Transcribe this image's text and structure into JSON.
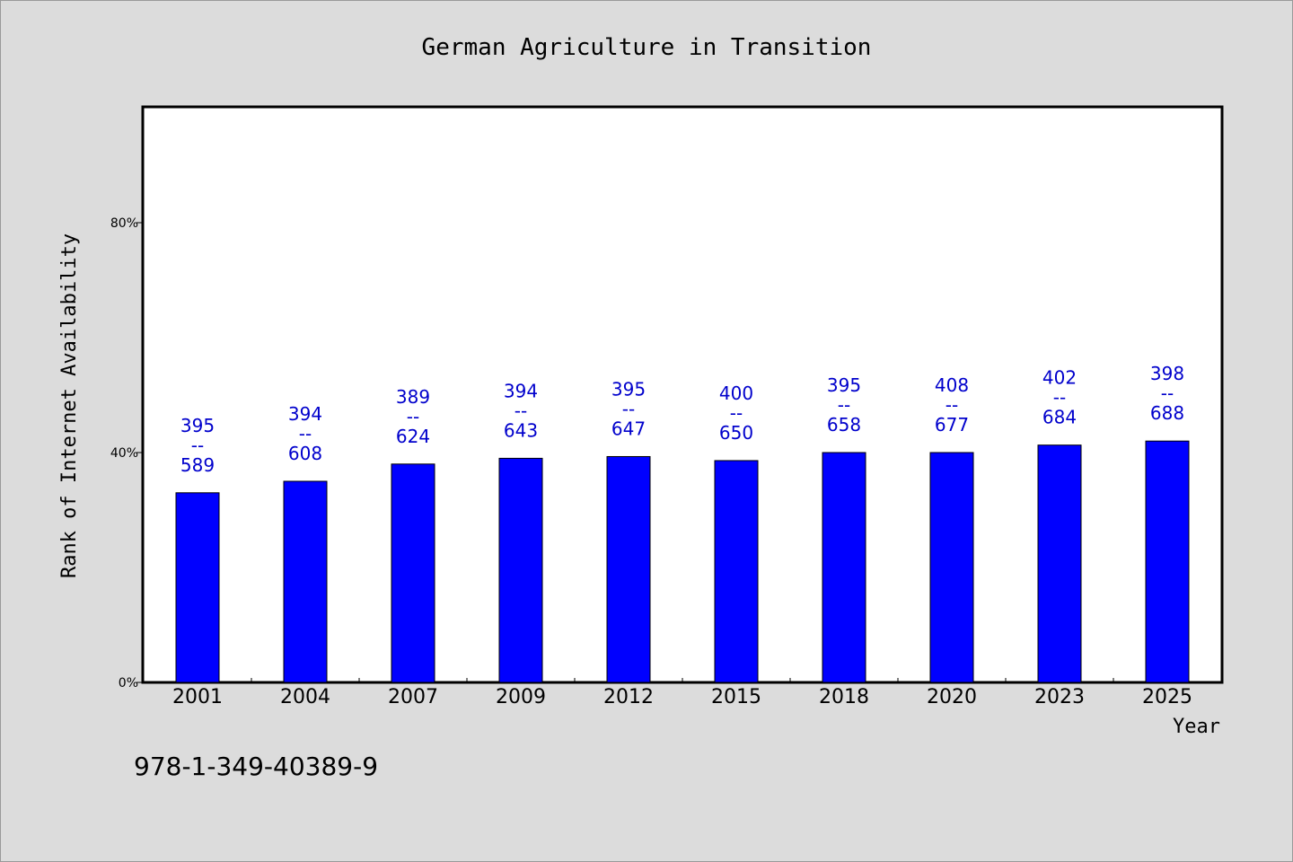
{
  "chart_data": {
    "type": "bar",
    "title": "German Agriculture in Transition",
    "xlabel": "Year",
    "ylabel": "Rank of Internet Availability",
    "categories": [
      "2001",
      "2004",
      "2007",
      "2009",
      "2012",
      "2015",
      "2018",
      "2020",
      "2023",
      "2025"
    ],
    "values": [
      33,
      35,
      38,
      39,
      39.3,
      38.6,
      40,
      40,
      41.3,
      42
    ],
    "labels_top": [
      "395",
      "394",
      "389",
      "394",
      "395",
      "400",
      "395",
      "408",
      "402",
      "398"
    ],
    "labels_sep": [
      "--",
      "--",
      "--",
      "--",
      "--",
      "--",
      "--",
      "--",
      "--",
      "--"
    ],
    "labels_bottom": [
      "589",
      "608",
      "624",
      "643",
      "647",
      "650",
      "658",
      "677",
      "684",
      "688"
    ],
    "ylim": [
      0,
      100
    ],
    "yticks": [
      0,
      40,
      80
    ],
    "ytick_labels": [
      "0%",
      "40%",
      "80%"
    ],
    "grid": false,
    "bar_color": "#0000ff",
    "label_color": "#0000cc",
    "plot_background": "#ffffff",
    "page_background": "#dcdcdc"
  },
  "footer": {
    "isbn": "978-1-349-40389-9"
  }
}
